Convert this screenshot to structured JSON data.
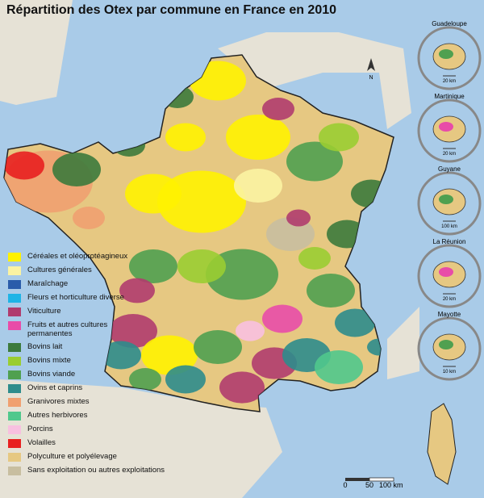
{
  "title": "Répartition des Otex par commune en France en 2010",
  "legend": {
    "items": [
      {
        "label": "Céréales et oléoprotéagineux",
        "color": "#fff200"
      },
      {
        "label": "Cultures générales",
        "color": "#fbf3a2"
      },
      {
        "label": "Maraîchage",
        "color": "#2a5caa"
      },
      {
        "label": "Fleurs et horticulture diverse",
        "color": "#1eb4e6"
      },
      {
        "label": "Viticulture",
        "color": "#b03c6e"
      },
      {
        "label": "Fruits et autres cultures permanentes",
        "color": "#e84ca8"
      },
      {
        "label": "Bovins lait",
        "color": "#3c7a3c"
      },
      {
        "label": "Bovins mixte",
        "color": "#9acd32"
      },
      {
        "label": "Bovins viande",
        "color": "#50a050"
      },
      {
        "label": "Ovins et caprins",
        "color": "#2e8c8c"
      },
      {
        "label": "Granivores mixtes",
        "color": "#f0a070"
      },
      {
        "label": "Autres herbivores",
        "color": "#50c88c"
      },
      {
        "label": "Porcins",
        "color": "#f8c0e0"
      },
      {
        "label": "Volailles",
        "color": "#e82020"
      },
      {
        "label": "Polyculture et polyélevage",
        "color": "#e6c882"
      },
      {
        "label": "Sans exploitation ou autres exploitations",
        "color": "#c8bea0"
      }
    ]
  },
  "north": "N",
  "scale": {
    "labels": [
      "0",
      "50",
      "100 km"
    ]
  },
  "insets": [
    {
      "name": "Guadeloupe",
      "scale": "20 km"
    },
    {
      "name": "Martinique",
      "scale": "20 km"
    },
    {
      "name": "Guyane",
      "scale": "100 km"
    },
    {
      "name": "La Réunion",
      "scale": "20 km"
    },
    {
      "name": "Mayotte",
      "scale": "10 km"
    }
  ]
}
